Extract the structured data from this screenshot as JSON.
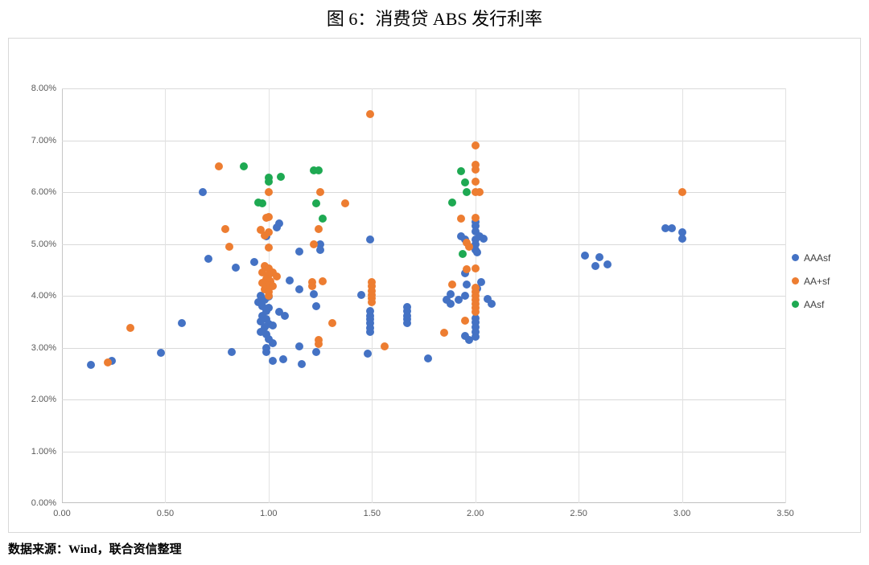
{
  "title": "图 6：消费贷 ABS 发行利率",
  "source": "数据来源：Wind，联合资信整理",
  "chart_data": {
    "type": "scatter",
    "title": "图 6：消费贷 ABS 发行利率",
    "xlabel": "",
    "ylabel": "",
    "xlim": [
      0,
      3.5
    ],
    "ylim_percent": [
      0,
      8
    ],
    "x_ticks": [
      "0.00",
      "0.50",
      "1.00",
      "1.50",
      "2.00",
      "2.50",
      "3.00",
      "3.50"
    ],
    "y_ticks": [
      "0.00%",
      "1.00%",
      "2.00%",
      "3.00%",
      "4.00%",
      "5.00%",
      "6.00%",
      "7.00%",
      "8.00%"
    ],
    "grid": true,
    "legend_position": "right",
    "series": [
      {
        "name": "AAAsf",
        "color": "#4472C4",
        "points": [
          [
            0.14,
            2.67
          ],
          [
            0.24,
            2.75
          ],
          [
            0.48,
            2.9
          ],
          [
            0.58,
            3.48
          ],
          [
            0.68,
            6.0
          ],
          [
            0.71,
            4.71
          ],
          [
            0.82,
            2.92
          ],
          [
            0.84,
            4.54
          ],
          [
            0.93,
            4.65
          ],
          [
            0.99,
            5.15
          ],
          [
            1.04,
            5.32
          ],
          [
            1.05,
            5.39
          ],
          [
            1.15,
            4.85
          ],
          [
            1.1,
            4.3
          ],
          [
            1.15,
            4.12
          ],
          [
            0.96,
            4.0
          ],
          [
            1.0,
            3.98
          ],
          [
            0.98,
            3.93
          ],
          [
            0.95,
            3.88
          ],
          [
            0.97,
            3.8
          ],
          [
            1.0,
            3.76
          ],
          [
            0.99,
            3.7
          ],
          [
            1.05,
            3.69
          ],
          [
            1.08,
            3.61
          ],
          [
            0.97,
            3.62
          ],
          [
            0.99,
            3.55
          ],
          [
            0.96,
            3.5
          ],
          [
            1.0,
            3.45
          ],
          [
            0.98,
            3.4
          ],
          [
            1.02,
            3.42
          ],
          [
            0.96,
            3.31
          ],
          [
            0.99,
            3.26
          ],
          [
            1.0,
            3.17
          ],
          [
            1.02,
            3.08
          ],
          [
            0.99,
            2.99
          ],
          [
            0.99,
            2.91
          ],
          [
            1.02,
            2.74
          ],
          [
            1.07,
            2.77
          ],
          [
            1.15,
            3.02
          ],
          [
            1.16,
            2.68
          ],
          [
            1.25,
            4.99
          ],
          [
            1.25,
            4.88
          ],
          [
            1.22,
            4.03
          ],
          [
            1.23,
            3.8
          ],
          [
            1.23,
            2.91
          ],
          [
            1.45,
            4.02
          ],
          [
            1.49,
            5.09
          ],
          [
            1.49,
            3.7
          ],
          [
            1.49,
            3.62
          ],
          [
            1.49,
            3.55
          ],
          [
            1.49,
            3.47
          ],
          [
            1.49,
            3.38
          ],
          [
            1.49,
            3.3
          ],
          [
            1.48,
            2.89
          ],
          [
            1.67,
            3.78
          ],
          [
            1.67,
            3.7
          ],
          [
            1.67,
            3.62
          ],
          [
            1.67,
            3.55
          ],
          [
            1.67,
            3.47
          ],
          [
            1.77,
            2.79
          ],
          [
            1.93,
            5.15
          ],
          [
            1.95,
            5.08
          ],
          [
            2.0,
            5.43
          ],
          [
            2.0,
            5.35
          ],
          [
            2.0,
            5.24
          ],
          [
            2.02,
            5.15
          ],
          [
            2.0,
            5.08
          ],
          [
            2.04,
            5.1
          ],
          [
            2.0,
            5.0
          ],
          [
            2.0,
            4.88
          ],
          [
            2.01,
            4.84
          ],
          [
            1.95,
            4.43
          ],
          [
            1.96,
            4.22
          ],
          [
            2.03,
            4.26
          ],
          [
            2.01,
            4.14
          ],
          [
            1.88,
            4.03
          ],
          [
            1.86,
            3.92
          ],
          [
            1.88,
            3.84
          ],
          [
            1.92,
            3.92
          ],
          [
            1.95,
            4.0
          ],
          [
            2.06,
            3.94
          ],
          [
            2.08,
            3.85
          ],
          [
            2.0,
            3.57
          ],
          [
            2.0,
            3.49
          ],
          [
            2.0,
            3.4
          ],
          [
            2.0,
            3.3
          ],
          [
            2.0,
            3.21
          ],
          [
            1.95,
            3.22
          ],
          [
            1.97,
            3.15
          ],
          [
            2.53,
            4.78
          ],
          [
            2.6,
            4.74
          ],
          [
            2.58,
            4.57
          ],
          [
            2.64,
            4.6
          ],
          [
            2.92,
            5.3
          ],
          [
            2.95,
            5.3
          ],
          [
            3.0,
            5.22
          ],
          [
            3.0,
            5.1
          ]
        ]
      },
      {
        "name": "AA+sf",
        "color": "#ED7D31",
        "points": [
          [
            0.22,
            2.71
          ],
          [
            0.33,
            3.38
          ],
          [
            0.76,
            6.5
          ],
          [
            0.79,
            5.29
          ],
          [
            0.81,
            4.95
          ],
          [
            1.0,
            6.0
          ],
          [
            1.0,
            5.52
          ],
          [
            0.99,
            5.5
          ],
          [
            0.96,
            5.27
          ],
          [
            1.0,
            5.22
          ],
          [
            0.98,
            5.17
          ],
          [
            1.0,
            4.93
          ],
          [
            0.98,
            4.58
          ],
          [
            1.0,
            4.52
          ],
          [
            0.97,
            4.45
          ],
          [
            1.02,
            4.45
          ],
          [
            1.04,
            4.37
          ],
          [
            1.0,
            4.4
          ],
          [
            0.99,
            4.32
          ],
          [
            1.01,
            4.28
          ],
          [
            0.97,
            4.25
          ],
          [
            1.0,
            4.2
          ],
          [
            1.02,
            4.18
          ],
          [
            0.98,
            4.12
          ],
          [
            1.0,
            4.08
          ],
          [
            1.0,
            4.0
          ],
          [
            1.25,
            6.0
          ],
          [
            1.37,
            5.78
          ],
          [
            1.24,
            5.28
          ],
          [
            1.22,
            5.0
          ],
          [
            1.21,
            4.26
          ],
          [
            1.26,
            4.28
          ],
          [
            1.21,
            4.18
          ],
          [
            1.24,
            3.15
          ],
          [
            1.24,
            3.07
          ],
          [
            1.31,
            3.47
          ],
          [
            1.49,
            7.5
          ],
          [
            1.5,
            4.27
          ],
          [
            1.5,
            4.18
          ],
          [
            1.5,
            4.1
          ],
          [
            1.5,
            4.02
          ],
          [
            1.5,
            3.95
          ],
          [
            1.5,
            3.88
          ],
          [
            1.56,
            3.02
          ],
          [
            2.0,
            6.9
          ],
          [
            2.0,
            6.53
          ],
          [
            2.0,
            6.43
          ],
          [
            2.0,
            6.2
          ],
          [
            2.0,
            6.0
          ],
          [
            2.02,
            6.0
          ],
          [
            1.93,
            5.49
          ],
          [
            2.0,
            5.5
          ],
          [
            1.96,
            5.03
          ],
          [
            1.97,
            4.95
          ],
          [
            1.96,
            4.51
          ],
          [
            2.0,
            4.53
          ],
          [
            1.89,
            4.22
          ],
          [
            2.0,
            4.16
          ],
          [
            2.0,
            4.08
          ],
          [
            2.0,
            4.0
          ],
          [
            2.0,
            3.92
          ],
          [
            2.0,
            3.84
          ],
          [
            2.0,
            3.76
          ],
          [
            2.0,
            3.69
          ],
          [
            1.95,
            3.52
          ],
          [
            1.85,
            3.29
          ],
          [
            3.0,
            6.0
          ]
        ]
      },
      {
        "name": "AAsf",
        "color": "#1EA952",
        "points": [
          [
            0.88,
            6.5
          ],
          [
            0.95,
            5.8
          ],
          [
            0.97,
            5.78
          ],
          [
            1.0,
            6.28
          ],
          [
            1.0,
            6.2
          ],
          [
            1.06,
            6.3
          ],
          [
            1.22,
            6.42
          ],
          [
            1.24,
            6.42
          ],
          [
            1.23,
            5.78
          ],
          [
            1.26,
            5.49
          ],
          [
            1.89,
            5.8
          ],
          [
            1.93,
            6.4
          ],
          [
            1.95,
            6.19
          ],
          [
            1.96,
            6.0
          ],
          [
            1.94,
            4.81
          ]
        ]
      }
    ]
  }
}
